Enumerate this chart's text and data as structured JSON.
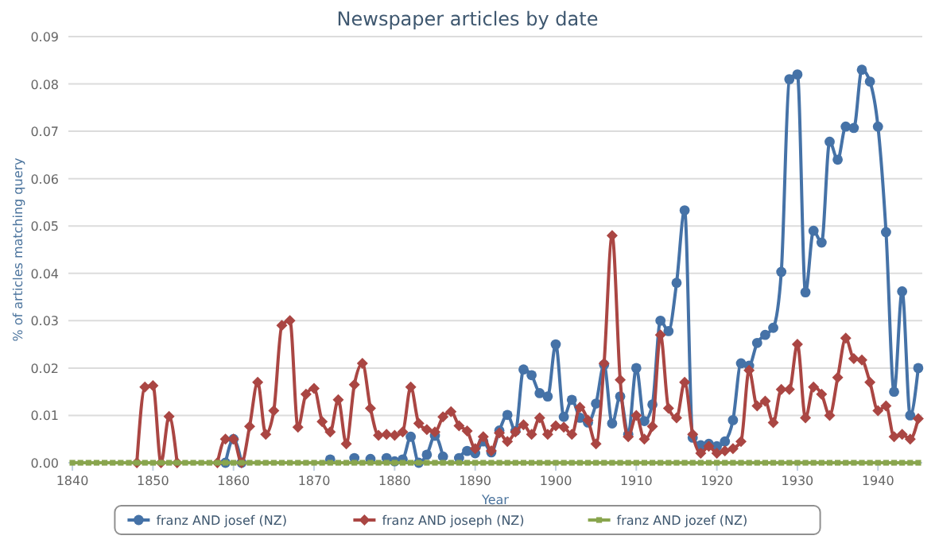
{
  "chart_data": {
    "type": "line",
    "title": "Newspaper articles by date",
    "xlabel": "Year",
    "ylabel": "% of articles matching query",
    "x": [
      1840,
      1841,
      1842,
      1843,
      1844,
      1845,
      1846,
      1847,
      1848,
      1849,
      1850,
      1851,
      1852,
      1853,
      1854,
      1855,
      1856,
      1857,
      1858,
      1859,
      1860,
      1861,
      1862,
      1863,
      1864,
      1865,
      1866,
      1867,
      1868,
      1869,
      1870,
      1871,
      1872,
      1873,
      1874,
      1875,
      1876,
      1877,
      1878,
      1879,
      1880,
      1881,
      1882,
      1883,
      1884,
      1885,
      1886,
      1887,
      1888,
      1889,
      1890,
      1891,
      1892,
      1893,
      1894,
      1895,
      1896,
      1897,
      1898,
      1899,
      1900,
      1901,
      1902,
      1903,
      1904,
      1905,
      1906,
      1907,
      1908,
      1909,
      1910,
      1911,
      1912,
      1913,
      1914,
      1915,
      1916,
      1917,
      1918,
      1919,
      1920,
      1921,
      1922,
      1923,
      1924,
      1925,
      1926,
      1927,
      1928,
      1929,
      1930,
      1931,
      1932,
      1933,
      1934,
      1935,
      1936,
      1937,
      1938,
      1939,
      1940,
      1941,
      1942,
      1943,
      1944,
      1945
    ],
    "xlim": [
      1839.5,
      1945.5
    ],
    "xticks": [
      1840,
      1850,
      1860,
      1870,
      1880,
      1890,
      1900,
      1910,
      1920,
      1930,
      1940
    ],
    "ylim": [
      0,
      0.09
    ],
    "yticks": [
      {
        "value": 0,
        "label": "0.00"
      },
      0.01,
      0.02,
      0.03,
      0.04,
      0.05,
      0.06,
      0.07,
      0.08,
      0.09
    ],
    "grid": "y",
    "legend": "bottom",
    "line_style": "solid",
    "series": [
      {
        "name": "franz AND josef (NZ)",
        "color": "#4572a7",
        "marker": "circle",
        "values": [
          null,
          null,
          null,
          null,
          null,
          null,
          null,
          null,
          null,
          null,
          null,
          null,
          null,
          null,
          null,
          null,
          null,
          null,
          null,
          0,
          0.005,
          0,
          null,
          null,
          null,
          null,
          null,
          null,
          null,
          null,
          null,
          null,
          0.0007,
          null,
          null,
          0.001,
          null,
          0.0008,
          null,
          0.001,
          0.0003,
          0.0007,
          0.0055,
          0,
          0.0017,
          0.0057,
          0.0013,
          null,
          0.001,
          0.0025,
          0.002,
          0.0045,
          0.0022,
          0.0068,
          0.0101,
          0.0067,
          0.0197,
          0.0185,
          0.0147,
          0.014,
          0.025,
          0.0097,
          0.0133,
          0.0095,
          0.0085,
          0.0125,
          0.0207,
          0.0083,
          0.014,
          0.006,
          0.02,
          0.0088,
          0.0123,
          0.03,
          0.0278,
          0.038,
          0.0533,
          0.0053,
          0.0037,
          0.004,
          0.0035,
          0.0045,
          0.009,
          0.021,
          0.0205,
          0.0253,
          0.027,
          0.0285,
          0.0403,
          0.081,
          0.082,
          0.036,
          0.049,
          0.0465,
          0.0678,
          0.064,
          0.071,
          0.0707,
          0.083,
          0.0805,
          0.071,
          0.0487,
          0.015,
          0.0362,
          0.01,
          0.02
        ]
      },
      {
        "name": "franz AND joseph (NZ)",
        "color": "#aa4643",
        "marker": "diamond",
        "values": [
          null,
          null,
          null,
          null,
          null,
          null,
          null,
          null,
          0,
          0.016,
          0.0163,
          0,
          0.0098,
          0,
          null,
          null,
          null,
          null,
          0,
          0.005,
          0.005,
          0,
          0.0077,
          0.017,
          0.006,
          0.011,
          0.029,
          0.03,
          0.0075,
          0.0145,
          0.0157,
          0.0087,
          0.0065,
          0.0133,
          0.004,
          0.0165,
          0.021,
          0.0115,
          0.0058,
          0.006,
          0.0058,
          0.0065,
          0.016,
          0.0083,
          0.007,
          0.0065,
          0.0097,
          0.0108,
          0.0078,
          0.0067,
          0.003,
          0.0055,
          0.0025,
          0.0063,
          0.0045,
          0.0065,
          0.008,
          0.006,
          0.0095,
          0.006,
          0.0078,
          0.0075,
          0.006,
          0.0117,
          0.009,
          0.004,
          0.021,
          0.048,
          0.0175,
          0.0055,
          0.01,
          0.005,
          0.0077,
          0.027,
          0.0115,
          0.0095,
          0.017,
          0.006,
          0.002,
          0.0035,
          0.002,
          0.0025,
          0.003,
          0.0045,
          0.0195,
          0.012,
          0.013,
          0.0085,
          0.0155,
          0.0155,
          0.025,
          0.0095,
          0.016,
          0.0145,
          0.01,
          0.018,
          0.0263,
          0.022,
          0.0217,
          0.017,
          0.011,
          0.012,
          0.0055,
          0.006,
          0.005,
          0.0093
        ]
      },
      {
        "name": "franz AND jozef (NZ)",
        "color": "#89a54e",
        "marker": "square",
        "values": [
          0,
          0,
          0,
          0,
          0,
          0,
          0,
          0,
          0,
          0,
          0,
          0,
          0,
          0,
          0,
          0,
          0,
          0,
          0,
          0,
          0,
          0,
          0,
          0,
          0,
          0,
          0,
          0,
          0,
          0,
          0,
          0,
          0,
          0,
          0,
          0,
          0,
          0,
          0,
          0,
          0,
          0,
          0,
          0,
          0,
          0,
          0,
          0,
          0,
          0,
          0,
          0,
          0,
          0,
          0,
          0,
          0,
          0,
          0,
          0,
          0,
          0,
          0,
          0,
          0,
          0,
          0,
          0,
          0,
          0,
          0,
          0,
          0,
          0,
          0,
          0,
          0,
          0,
          0,
          0,
          0,
          0,
          0,
          0,
          0,
          0,
          0,
          0,
          0,
          0,
          0,
          0,
          0,
          0,
          0,
          0,
          0,
          0,
          0,
          0,
          0,
          0,
          0,
          0,
          0,
          0
        ]
      }
    ]
  }
}
